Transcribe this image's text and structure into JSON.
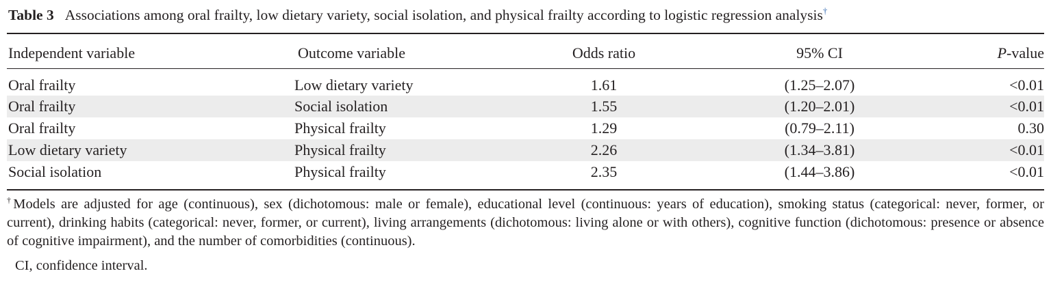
{
  "caption": {
    "label": "Table 3",
    "text": "Associations among oral frailty, low dietary variety, social isolation, and physical frailty according to logistic regression analysis",
    "footnote_mark": "†"
  },
  "columns": {
    "independent": "Independent variable",
    "outcome": "Outcome variable",
    "odds_ratio": "Odds ratio",
    "ci": "95% CI",
    "p_italic": "P",
    "p_rest": "-value"
  },
  "rows": [
    {
      "independent": "Oral frailty",
      "outcome": "Low dietary variety",
      "odds_ratio": "1.61",
      "ci": "(1.25–2.07)",
      "p": "<0.01"
    },
    {
      "independent": "Oral frailty",
      "outcome": "Social isolation",
      "odds_ratio": "1.55",
      "ci": "(1.20–2.01)",
      "p": "<0.01"
    },
    {
      "independent": "Oral frailty",
      "outcome": "Physical frailty",
      "odds_ratio": "1.29",
      "ci": "(0.79–2.11)",
      "p": "0.30"
    },
    {
      "independent": "Low dietary variety",
      "outcome": "Physical frailty",
      "odds_ratio": "2.26",
      "ci": "(1.34–3.81)",
      "p": "<0.01"
    },
    {
      "independent": "Social isolation",
      "outcome": "Physical frailty",
      "odds_ratio": "2.35",
      "ci": "(1.44–3.86)",
      "p": "<0.01"
    }
  ],
  "footnote": {
    "mark": "†",
    "text": "Models are adjusted for age (continuous), sex (dichotomous: male or female), educational level (continuous: years of education), smoking status (categorical: never, former, or current), drinking habits (categorical: never, former, or current), living arrangements (dichotomous: living alone or with others), cognitive function (dichotomous: presence or absence of cognitive impairment), and the number of comorbidities (continuous)."
  },
  "abbreviation": "CI, confidence interval.",
  "colors": {
    "text": "#231f20",
    "row_shade": "#ececec",
    "dagger": "#3b6fb5"
  }
}
